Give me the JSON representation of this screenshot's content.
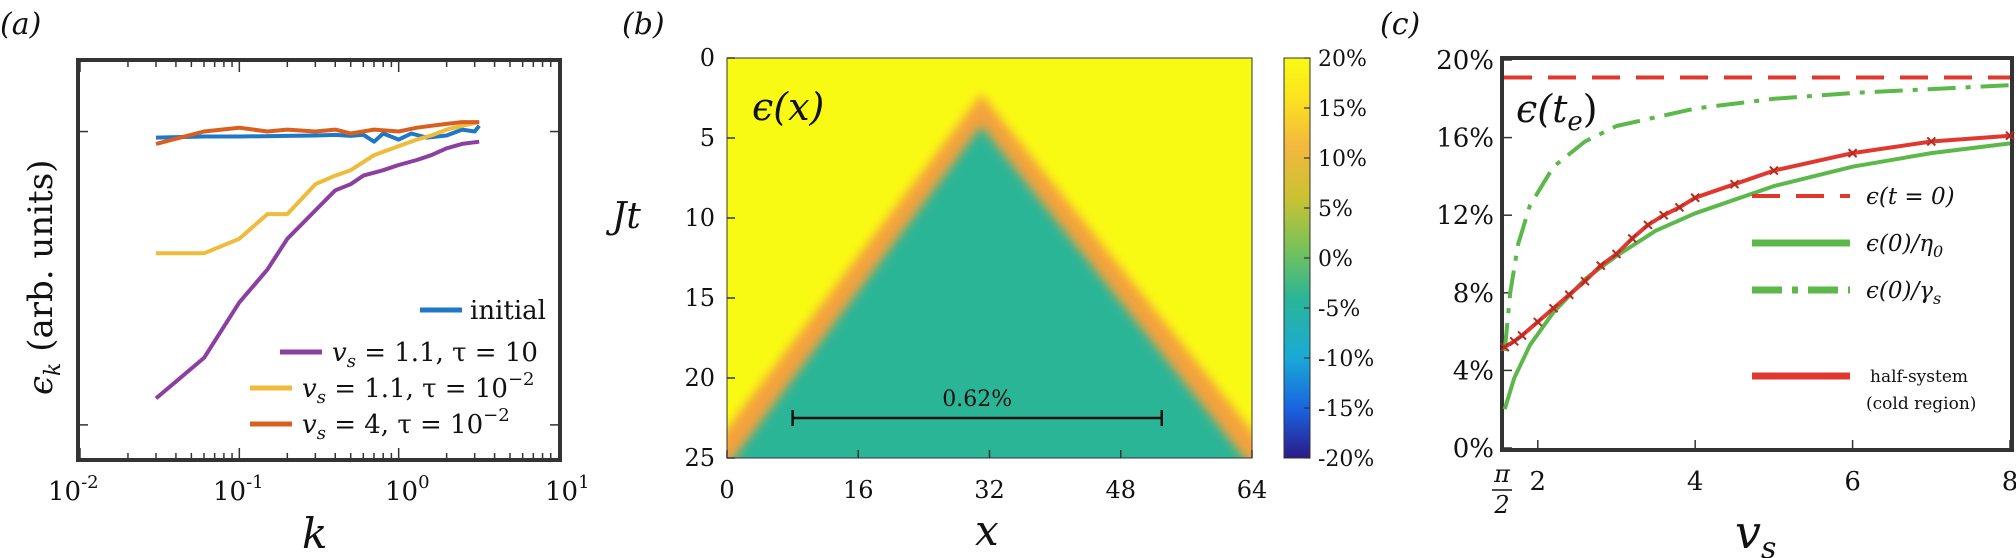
{
  "panels": {
    "a": {
      "label": "(a)"
    },
    "b": {
      "label": "(b)"
    },
    "c": {
      "label": "(c)"
    }
  },
  "chart_data": [
    {
      "id": "a",
      "type": "line",
      "xscale": "log",
      "yscale": "log",
      "xlim": [
        0.01,
        10
      ],
      "xticks": [
        "10",
        "10",
        "10",
        "10"
      ],
      "xtick_exps": [
        "-2",
        "-1",
        "0",
        "1"
      ],
      "xlabel": "k",
      "ylabel": "ϵ_k (arb. units)",
      "ylabel_main": "ϵ",
      "ylabel_sub": "k",
      "ylabel_rest": " (arb. units)",
      "grid": false,
      "legend_position": "lower-right",
      "series": [
        {
          "name": "initial",
          "color": "#1f77c8",
          "points": [
            [
              0.03,
              0.62
            ],
            [
              0.06,
              0.625
            ],
            [
              0.1,
              0.625
            ],
            [
              0.2,
              0.628
            ],
            [
              0.3,
              0.63
            ],
            [
              0.4,
              0.633
            ],
            [
              0.5,
              0.628
            ],
            [
              0.6,
              0.634
            ],
            [
              0.7,
              0.6
            ],
            [
              0.8,
              0.64
            ],
            [
              1.0,
              0.61
            ],
            [
              1.2,
              0.64
            ],
            [
              1.5,
              0.62
            ],
            [
              2.0,
              0.63
            ],
            [
              2.5,
              0.66
            ],
            [
              3.0,
              0.65
            ],
            [
              3.2,
              0.68
            ]
          ]
        },
        {
          "name": "v_s = 1.1, τ = 10",
          "color": "#8b3fa0",
          "points": [
            [
              0.03,
              0.08
            ],
            [
              0.06,
              0.11
            ],
            [
              0.1,
              0.17
            ],
            [
              0.15,
              0.22
            ],
            [
              0.2,
              0.28
            ],
            [
              0.3,
              0.35
            ],
            [
              0.4,
              0.41
            ],
            [
              0.5,
              0.43
            ],
            [
              0.6,
              0.46
            ],
            [
              0.8,
              0.48
            ],
            [
              1.0,
              0.5
            ],
            [
              1.3,
              0.52
            ],
            [
              1.6,
              0.54
            ],
            [
              2.0,
              0.57
            ],
            [
              2.5,
              0.59
            ],
            [
              3.2,
              0.6
            ]
          ]
        },
        {
          "name": "v_s = 1.1, τ = 10^-2",
          "color": "#eebb3a",
          "points": [
            [
              0.03,
              0.25
            ],
            [
              0.06,
              0.25
            ],
            [
              0.1,
              0.28
            ],
            [
              0.15,
              0.34
            ],
            [
              0.2,
              0.34
            ],
            [
              0.3,
              0.43
            ],
            [
              0.4,
              0.46
            ],
            [
              0.5,
              0.48
            ],
            [
              0.7,
              0.54
            ],
            [
              1.0,
              0.58
            ],
            [
              1.3,
              0.61
            ],
            [
              1.6,
              0.63
            ],
            [
              2.0,
              0.66
            ],
            [
              2.5,
              0.68
            ],
            [
              3.2,
              0.7
            ]
          ]
        },
        {
          "name": "v_s = 4, τ = 10^-2",
          "color": "#d95f1f",
          "points": [
            [
              0.03,
              0.59
            ],
            [
              0.06,
              0.65
            ],
            [
              0.1,
              0.67
            ],
            [
              0.15,
              0.65
            ],
            [
              0.2,
              0.66
            ],
            [
              0.3,
              0.65
            ],
            [
              0.4,
              0.66
            ],
            [
              0.5,
              0.64
            ],
            [
              0.7,
              0.66
            ],
            [
              1.0,
              0.65
            ],
            [
              1.3,
              0.67
            ],
            [
              1.6,
              0.68
            ],
            [
              2.0,
              0.69
            ],
            [
              2.5,
              0.7
            ],
            [
              3.2,
              0.7
            ]
          ]
        }
      ],
      "legend": [
        {
          "text": "initial",
          "type": "plain"
        },
        {
          "pre": "v",
          "sub": "s",
          "post": " = 1.1, τ = 10",
          "type": "math"
        },
        {
          "pre": "v",
          "sub": "s",
          "post": " = 1.1, τ = 10",
          "sup": "−2",
          "type": "math"
        },
        {
          "pre": "v",
          "sub": "s",
          "post": " = 4, τ = 10",
          "sup": "−2",
          "type": "math"
        }
      ]
    },
    {
      "id": "b",
      "type": "heatmap",
      "xlim": [
        0,
        64
      ],
      "ylim": [
        0,
        25
      ],
      "xticks": [
        0,
        16,
        32,
        48,
        64
      ],
      "yticks": [
        0,
        5,
        10,
        15,
        20,
        25
      ],
      "xlabel": "x",
      "ylabel": "Jt",
      "annotation": "ϵ(x)",
      "light_cone": {
        "apex_x": 31,
        "apex_t": 4,
        "edge_t": 25,
        "edge_x_left": 0,
        "edge_x_right": 64
      },
      "outside_value_percent": 20,
      "inside_value_percent": 0,
      "scale_bar": {
        "label": "0.62%",
        "x_from": 8,
        "x_to": 53,
        "t": 22.5
      },
      "colorbar": {
        "range": [
          -20,
          20
        ],
        "ticks": [
          "20%",
          "15%",
          "10%",
          "5%",
          "0%",
          "-5%",
          "-10%",
          "-15%",
          "-20%"
        ],
        "colors": [
          "#2b1a87",
          "#1a62e0",
          "#1aa9d6",
          "#2bb597",
          "#75c25a",
          "#c9c232",
          "#f4b73d",
          "#fbe31f",
          "#f9fa14"
        ]
      }
    },
    {
      "id": "c",
      "type": "line",
      "xlim": [
        1.5708,
        8
      ],
      "ylim": [
        0,
        20
      ],
      "xticks": [
        "2",
        "4",
        "6",
        "8"
      ],
      "xtick_special": {
        "num": "π",
        "den": "2"
      },
      "yticks": [
        "0%",
        "4%",
        "8%",
        "12%",
        "16%",
        "20%"
      ],
      "xlabel": "v_s",
      "xlabel_main": "v",
      "xlabel_sub": "s",
      "annotation": "ϵ(t_e)",
      "annotation_main": "ϵ(t",
      "annotation_sub": "e",
      "annotation_end": ")",
      "grid": false,
      "legend_position": "right",
      "series": [
        {
          "name": "ϵ(t = 0)",
          "style": "dashed",
          "color": "#e0382f",
          "points": [
            [
              1.5708,
              19.1
            ],
            [
              8,
              19.1
            ]
          ]
        },
        {
          "name": "ϵ(0)/η_0",
          "style": "solid",
          "color": "#5cb84a",
          "points": [
            [
              1.58,
              2.0
            ],
            [
              1.7,
              3.6
            ],
            [
              1.9,
              5.3
            ],
            [
              2.2,
              7.0
            ],
            [
              2.6,
              8.7
            ],
            [
              3.0,
              9.9
            ],
            [
              3.5,
              11.2
            ],
            [
              4.0,
              12.1
            ],
            [
              5.0,
              13.5
            ],
            [
              6.0,
              14.5
            ],
            [
              7.0,
              15.2
            ],
            [
              8.0,
              15.7
            ]
          ]
        },
        {
          "name": "ϵ(0)/γ_s",
          "style": "dashdot",
          "color": "#5cb84a",
          "points": [
            [
              1.58,
              5.0
            ],
            [
              1.65,
              8.0
            ],
            [
              1.75,
              10.5
            ],
            [
              1.9,
              12.5
            ],
            [
              2.2,
              14.5
            ],
            [
              2.6,
              15.8
            ],
            [
              3.0,
              16.6
            ],
            [
              4.0,
              17.5
            ],
            [
              5.0,
              18.0
            ],
            [
              6.0,
              18.3
            ],
            [
              7.0,
              18.5
            ],
            [
              8.0,
              18.7
            ]
          ]
        },
        {
          "name": "half-system (cold region)",
          "style": "solid-markers",
          "color": "#e0382f",
          "points": [
            [
              1.58,
              5.2
            ],
            [
              1.7,
              5.5
            ],
            [
              1.8,
              5.8
            ],
            [
              2.0,
              6.5
            ],
            [
              2.2,
              7.2
            ],
            [
              2.4,
              7.9
            ],
            [
              2.6,
              8.6
            ],
            [
              2.8,
              9.4
            ],
            [
              3.0,
              10.0
            ],
            [
              3.2,
              10.8
            ],
            [
              3.4,
              11.5
            ],
            [
              3.6,
              12.0
            ],
            [
              3.8,
              12.4
            ],
            [
              4.0,
              12.9
            ],
            [
              4.5,
              13.6
            ],
            [
              5.0,
              14.3
            ],
            [
              6.0,
              15.2
            ],
            [
              7.0,
              15.8
            ],
            [
              8.0,
              16.1
            ]
          ]
        }
      ],
      "legend": [
        {
          "main": "ϵ(t = 0)"
        },
        {
          "main": "ϵ(0)/η",
          "sub": "0"
        },
        {
          "main": "ϵ(0)/γ",
          "sub": "s"
        },
        {
          "main": "half-system",
          "second": "(cold region)"
        }
      ]
    }
  ]
}
